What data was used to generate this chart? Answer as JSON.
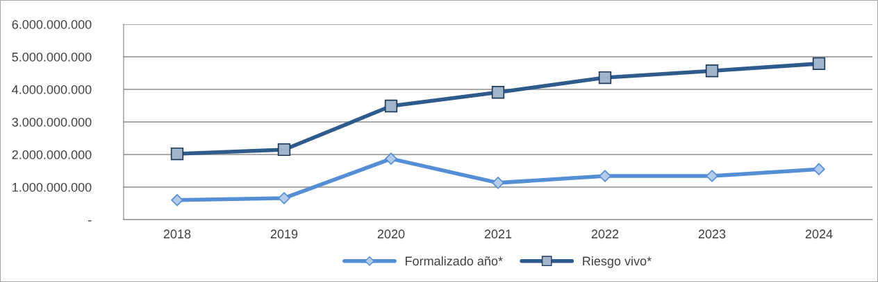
{
  "chart_data": {
    "type": "line",
    "categories": [
      "2018",
      "2019",
      "2020",
      "2021",
      "2022",
      "2023",
      "2024"
    ],
    "series": [
      {
        "name": "Formalizado año*",
        "color": "#558ed5",
        "marker": "diamond",
        "values": [
          600000000,
          660000000,
          1870000000,
          1130000000,
          1340000000,
          1340000000,
          1550000000
        ]
      },
      {
        "name": "Riesgo vivo*",
        "color": "#2f5b8c",
        "marker": "square",
        "values": [
          2020000000,
          2150000000,
          3490000000,
          3910000000,
          4360000000,
          4570000000,
          4790000000
        ]
      }
    ],
    "ylim": [
      0,
      6000000000
    ],
    "yticks": [
      {
        "value": 0,
        "label": "-"
      },
      {
        "value": 1000000000,
        "label": "1.000.000.000"
      },
      {
        "value": 2000000000,
        "label": "2.000.000.000"
      },
      {
        "value": 3000000000,
        "label": "3.000.000.000"
      },
      {
        "value": 4000000000,
        "label": "4.000.000.000"
      },
      {
        "value": 5000000000,
        "label": "5.000.000.000"
      },
      {
        "value": 6000000000,
        "label": "6.000.000.000"
      }
    ],
    "grid": "y",
    "legend": "bottom",
    "line_style": "solid"
  }
}
